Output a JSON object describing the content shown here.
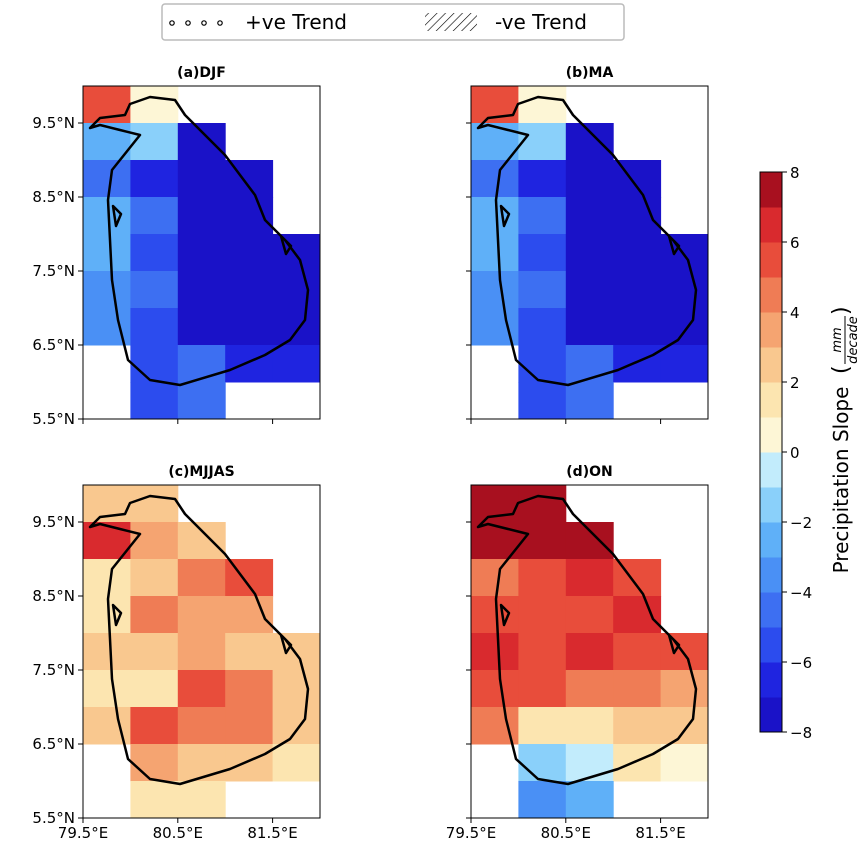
{
  "legend": {
    "positive": "+ve Trend",
    "negative": "-ve Trend"
  },
  "xlim": [
    79.5,
    82.0
  ],
  "ylim": [
    5.5,
    10.0
  ],
  "lon_ticks": [
    {
      "value": 79.5,
      "label": "79.5°E"
    },
    {
      "value": 80.5,
      "label": "80.5°E"
    },
    {
      "value": 81.5,
      "label": "81.5°E"
    }
  ],
  "lat_ticks": [
    {
      "value": 9.5,
      "label": "9.5°N"
    },
    {
      "value": 8.5,
      "label": "8.5°N"
    },
    {
      "value": 7.5,
      "label": "7.5°N"
    },
    {
      "value": 6.5,
      "label": "6.5°N"
    },
    {
      "value": 5.5,
      "label": "5.5°N"
    }
  ],
  "panels": [
    {
      "title": "(a)DJF",
      "grid": [
        [
          5.5,
          0.5,
          null,
          null,
          null
        ],
        [
          -2.5,
          -1.5,
          -7.5,
          null,
          null
        ],
        [
          -4.5,
          -6.5,
          -7.5,
          -7.5,
          null
        ],
        [
          -3.0,
          -4.5,
          -7.5,
          -7.5,
          null
        ],
        [
          -3.0,
          -5.5,
          -7.5,
          -7.5,
          -7.5
        ],
        [
          -3.5,
          -4.5,
          -7.5,
          -7.5,
          -7.5
        ],
        [
          -3.5,
          -5.5,
          -7.5,
          -7.5,
          -7.5
        ],
        [
          null,
          -5.5,
          -4.5,
          -7.0,
          -7.0
        ],
        [
          null,
          -5.5,
          -4.5,
          null,
          null
        ]
      ]
    },
    {
      "title": "(b)MA",
      "grid": [
        [
          5.5,
          0.5,
          null,
          null,
          null
        ],
        [
          -2.5,
          -1.5,
          -7.5,
          null,
          null
        ],
        [
          -4.5,
          -6.5,
          -7.5,
          -7.5,
          null
        ],
        [
          -3.0,
          -4.5,
          -7.5,
          -7.5,
          null
        ],
        [
          -3.0,
          -5.5,
          -7.5,
          -7.5,
          -7.5
        ],
        [
          -3.5,
          -4.5,
          -7.5,
          -7.5,
          -7.5
        ],
        [
          -3.5,
          -5.5,
          -7.5,
          -7.5,
          -7.5
        ],
        [
          null,
          -5.5,
          -4.5,
          -7.0,
          -7.0
        ],
        [
          null,
          -5.5,
          -4.5,
          null,
          null
        ]
      ]
    },
    {
      "title": "(c)MJJAS",
      "grid": [
        [
          2.5,
          2.5,
          null,
          null,
          null
        ],
        [
          6.5,
          3.5,
          2.5,
          null,
          null
        ],
        [
          1.5,
          2.5,
          4.5,
          5.5,
          null
        ],
        [
          1.0,
          4.5,
          3.5,
          3.5,
          null
        ],
        [
          2.5,
          2.5,
          3.5,
          2.5,
          2.5
        ],
        [
          1.0,
          1.5,
          5.5,
          4.5,
          2.5
        ],
        [
          2.5,
          5.5,
          4.5,
          4.5,
          2.5
        ],
        [
          null,
          3.5,
          2.5,
          2.5,
          1.5
        ],
        [
          null,
          1.5,
          1.5,
          null,
          null
        ]
      ]
    },
    {
      "title": "(d)ON",
      "grid": [
        [
          7.5,
          7.5,
          null,
          null,
          null
        ],
        [
          7.5,
          7.5,
          7.5,
          null,
          null
        ],
        [
          4.5,
          5.5,
          6.5,
          5.5,
          null
        ],
        [
          5.5,
          5.5,
          5.5,
          6.5,
          null
        ],
        [
          6.5,
          5.5,
          6.5,
          5.5,
          5.5
        ],
        [
          5.5,
          5.5,
          4.5,
          4.5,
          3.5
        ],
        [
          4.5,
          1.5,
          1.5,
          2.5,
          2.5
        ],
        [
          null,
          -1.5,
          -0.5,
          1.5,
          0.5
        ],
        [
          null,
          -3.5,
          -2.5,
          null,
          null
        ]
      ]
    }
  ],
  "colorbar": {
    "label": "Precipitation Slope",
    "unit_top": "mm",
    "unit_bottom": "decade",
    "lim": [
      -8,
      8
    ],
    "ticks": [
      {
        "value": 8,
        "label": "8"
      },
      {
        "value": 6,
        "label": "6"
      },
      {
        "value": 4,
        "label": "4"
      },
      {
        "value": 2,
        "label": "2"
      },
      {
        "value": 0,
        "label": "0"
      },
      {
        "value": -2,
        "label": "−2"
      },
      {
        "value": -4,
        "label": "−4"
      },
      {
        "value": -6,
        "label": "−6"
      },
      {
        "value": -8,
        "label": "−8"
      }
    ],
    "colors": [
      "#1a12c8",
      "#1f24e0",
      "#2c4cee",
      "#3d6ff2",
      "#4a90f5",
      "#5fb0f8",
      "#8ad0fa",
      "#c2ecfc",
      "#fdf6d6",
      "#fce5b0",
      "#f9c88f",
      "#f5a471",
      "#ef7c55",
      "#e84d3b",
      "#d92a2e",
      "#a8101f"
    ]
  }
}
